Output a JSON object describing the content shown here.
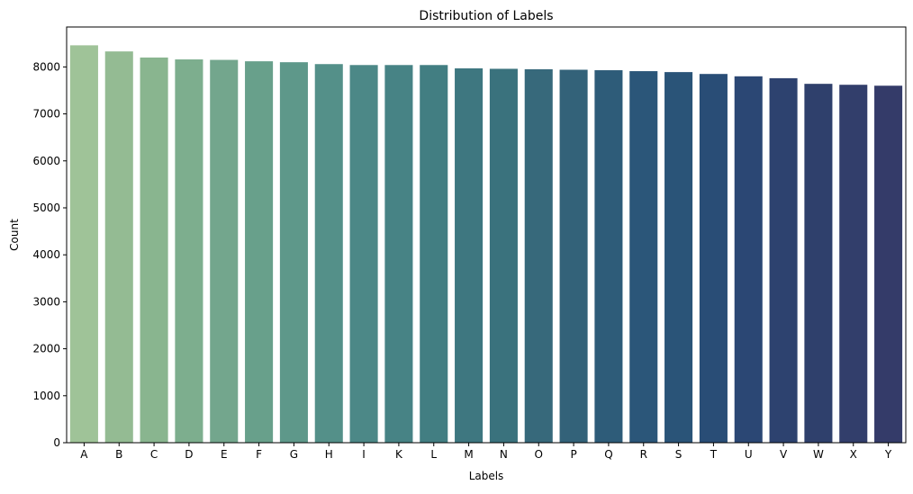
{
  "chart_data": {
    "type": "bar",
    "title": "Distribution of Labels",
    "xlabel": "Labels",
    "ylabel": "Count",
    "ylim": [
      0,
      8850
    ],
    "yticks": [
      0,
      1000,
      2000,
      3000,
      4000,
      5000,
      6000,
      7000,
      8000
    ],
    "grid": false,
    "categories": [
      "A",
      "B",
      "C",
      "D",
      "E",
      "F",
      "G",
      "H",
      "I",
      "K",
      "L",
      "M",
      "N",
      "O",
      "P",
      "Q",
      "R",
      "S",
      "T",
      "U",
      "V",
      "W",
      "X",
      "Y"
    ],
    "values": [
      8460,
      8330,
      8200,
      8160,
      8150,
      8120,
      8100,
      8060,
      8040,
      8040,
      8040,
      7970,
      7960,
      7950,
      7940,
      7930,
      7910,
      7890,
      7850,
      7800,
      7760,
      7640,
      7620,
      7600
    ],
    "colors": [
      "#9fc398",
      "#94bb93",
      "#89b58f",
      "#7dae8e",
      "#73a68d",
      "#68a08b",
      "#5e988a",
      "#549089",
      "#4c8887",
      "#478385",
      "#427e82",
      "#3e7780",
      "#3a727d",
      "#37697b",
      "#336279",
      "#2e5c79",
      "#2b5679",
      "#2a5478",
      "#294d76",
      "#2b4774",
      "#2d426f",
      "#2f406c",
      "#323e6b",
      "#343b69"
    ]
  }
}
